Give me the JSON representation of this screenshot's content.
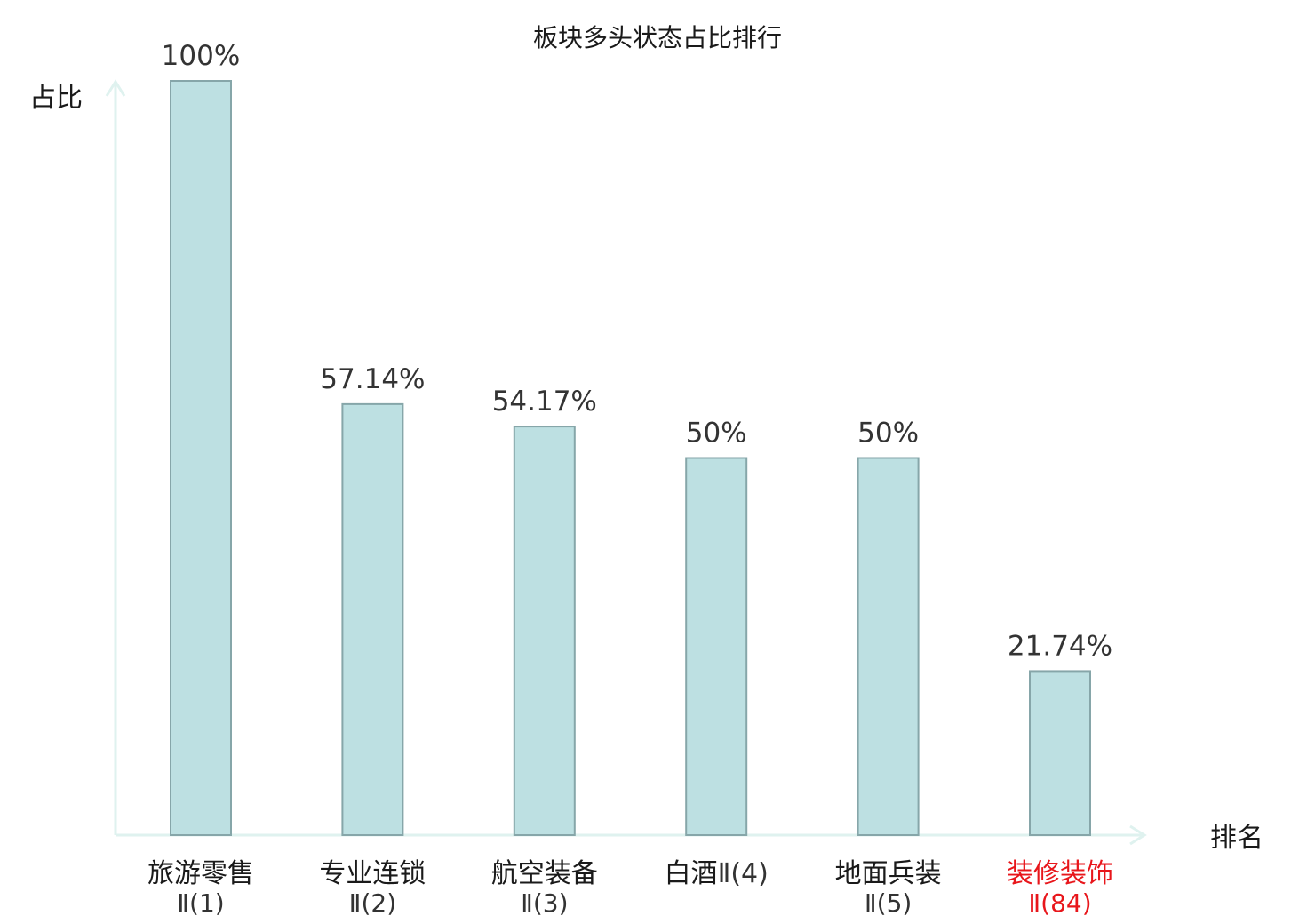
{
  "chart_data": {
    "type": "bar",
    "title": "板块多头状态占比排行",
    "ylabel": "占比",
    "xlabel": "排名",
    "ylim": [
      0,
      100
    ],
    "grid": false,
    "categories": [
      {
        "name": "旅游零售",
        "suffix": "Ⅱ(1)",
        "highlight": false
      },
      {
        "name": "专业连锁",
        "suffix": "Ⅱ(2)",
        "highlight": false
      },
      {
        "name": "航空装备",
        "suffix": "Ⅱ(3)",
        "highlight": false
      },
      {
        "name": "白酒",
        "suffix": "Ⅱ(4)",
        "highlight": false
      },
      {
        "name": "地面兵装",
        "suffix": "Ⅱ(5)",
        "highlight": false
      },
      {
        "name": "装修装饰",
        "suffix": "Ⅱ(84)",
        "highlight": true
      }
    ],
    "values": [
      100,
      57.14,
      54.17,
      50,
      50,
      21.74
    ],
    "value_labels": [
      "100%",
      "57.14%",
      "54.17%",
      "50%",
      "50%",
      "21.74%"
    ]
  },
  "colors": {
    "bar_fill": "#bde0e2",
    "bar_stroke": "#86a6a9",
    "axis": "#dff2ef",
    "label_text": "#1a1a1a",
    "label_sub_text": "#333333",
    "highlight": "#e8161b"
  }
}
